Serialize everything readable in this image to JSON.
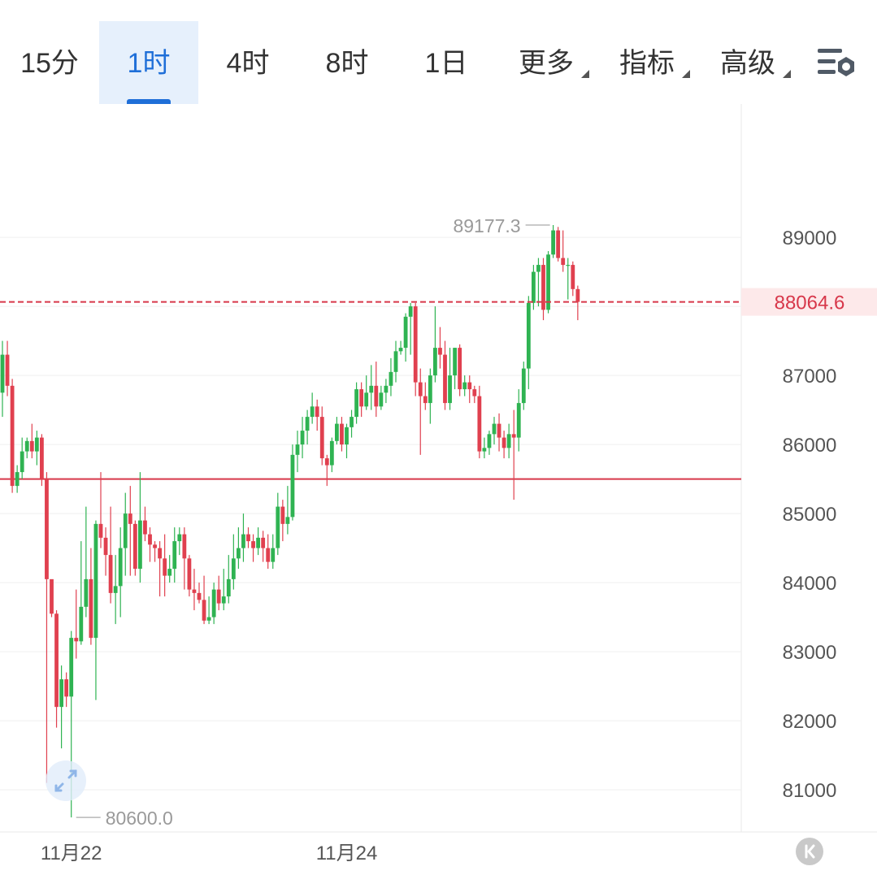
{
  "tabs": [
    {
      "label": "15分",
      "active": false,
      "dropdown": false
    },
    {
      "label": "1时",
      "active": true,
      "dropdown": false
    },
    {
      "label": "4时",
      "active": false,
      "dropdown": false
    },
    {
      "label": "8时",
      "active": false,
      "dropdown": false
    },
    {
      "label": "1日",
      "active": false,
      "dropdown": false
    },
    {
      "label": "更多",
      "active": false,
      "dropdown": true
    },
    {
      "label": "指标",
      "active": false,
      "dropdown": true
    },
    {
      "label": "高级",
      "active": false,
      "dropdown": true
    }
  ],
  "settings_icon": "chart-settings-icon",
  "fullscreen_icon": "expand-arrows-icon",
  "scroll_end_icon": "scroll-to-latest-icon",
  "colors": {
    "up": "#2fb352",
    "down": "#e0404f",
    "accent": "#1f6fd8",
    "grid": "#efefef",
    "axis_text": "#555555",
    "price_line": "#d7374a"
  },
  "chart_data": {
    "type": "candlestick",
    "interval": "1时",
    "y_ticks": [
      81000,
      82000,
      83000,
      84000,
      85000,
      86000,
      87000,
      88000,
      89000
    ],
    "y_tick_labels": [
      "81000",
      "82000",
      "83000",
      "84000",
      "85000",
      "86000",
      "87000",
      "",
      "89000"
    ],
    "x_labels": [
      {
        "label": "11月22",
        "index": 14
      },
      {
        "label": "11月24",
        "index": 70
      }
    ],
    "ylim": [
      80390,
      90930
    ],
    "last_price": 88064.6,
    "last_price_label": "88064.6",
    "high_label": "89177.3",
    "low_label": "80600.0",
    "support_level": 85500,
    "candles": [
      [
        86750,
        87300,
        86400,
        87500
      ],
      [
        87300,
        86850,
        86700,
        87500
      ],
      [
        86850,
        85400,
        85300,
        86950
      ],
      [
        85400,
        85600,
        85300,
        85700
      ],
      [
        85600,
        85900,
        85500,
        86100
      ],
      [
        85900,
        86050,
        85800,
        86100
      ],
      [
        86050,
        85900,
        85800,
        86300
      ],
      [
        85900,
        86100,
        85700,
        86200
      ],
      [
        86100,
        85500,
        85400,
        86150
      ],
      [
        85500,
        84050,
        81100,
        85600
      ],
      [
        84050,
        83550,
        83500,
        84000
      ],
      [
        83550,
        82200,
        81900,
        83600
      ],
      [
        82200,
        82600,
        81600,
        82800
      ],
      [
        82600,
        82350,
        82200,
        82700
      ],
      [
        82350,
        83200,
        80600,
        83300
      ],
      [
        83200,
        83150,
        82900,
        83900
      ],
      [
        83150,
        83650,
        83100,
        84600
      ],
      [
        83650,
        84050,
        83500,
        85100
      ],
      [
        84050,
        83200,
        83100,
        84500
      ],
      [
        83200,
        84850,
        82300,
        84900
      ],
      [
        84850,
        84650,
        84500,
        85600
      ],
      [
        84650,
        84400,
        84100,
        84800
      ],
      [
        84400,
        83850,
        83700,
        85100
      ],
      [
        83850,
        83950,
        83400,
        84400
      ],
      [
        83950,
        84500,
        83500,
        84800
      ],
      [
        84500,
        85000,
        84100,
        85300
      ],
      [
        85000,
        84850,
        84100,
        85400
      ],
      [
        84850,
        84200,
        84100,
        84900
      ],
      [
        84200,
        84900,
        84000,
        85600
      ],
      [
        84900,
        84700,
        84600,
        85100
      ],
      [
        84700,
        84550,
        84300,
        84800
      ],
      [
        84550,
        84500,
        84300,
        84600
      ],
      [
        84500,
        84350,
        83800,
        84600
      ],
      [
        84350,
        84100,
        83800,
        84700
      ],
      [
        84100,
        84200,
        84000,
        84400
      ],
      [
        84200,
        84600,
        84000,
        84800
      ],
      [
        84600,
        84700,
        84400,
        84800
      ],
      [
        84700,
        84350,
        83900,
        84800
      ],
      [
        84350,
        83900,
        83800,
        84400
      ],
      [
        83900,
        83850,
        83600,
        84200
      ],
      [
        83850,
        83750,
        83700,
        84000
      ],
      [
        83750,
        83450,
        83400,
        84100
      ],
      [
        83450,
        83500,
        83400,
        83800
      ],
      [
        83500,
        83900,
        83400,
        84000
      ],
      [
        83900,
        83700,
        83600,
        84100
      ],
      [
        83700,
        83800,
        83600,
        84200
      ],
      [
        83800,
        84050,
        83700,
        84400
      ],
      [
        84050,
        84350,
        83900,
        84700
      ],
      [
        84350,
        84500,
        84200,
        84800
      ],
      [
        84500,
        84700,
        84300,
        85000
      ],
      [
        84700,
        84600,
        84500,
        84800
      ],
      [
        84600,
        84500,
        84300,
        84700
      ],
      [
        84500,
        84650,
        84400,
        84800
      ],
      [
        84650,
        84500,
        84300,
        84750
      ],
      [
        84500,
        84300,
        84200,
        84700
      ],
      [
        84300,
        84500,
        84200,
        84700
      ],
      [
        84500,
        85100,
        84400,
        85300
      ],
      [
        85100,
        84850,
        84600,
        85200
      ],
      [
        84850,
        84950,
        84700,
        85400
      ],
      [
        84950,
        85850,
        84900,
        86000
      ],
      [
        85850,
        86000,
        85600,
        86200
      ],
      [
        86000,
        86200,
        85800,
        86400
      ],
      [
        86200,
        86400,
        86000,
        86500
      ],
      [
        86400,
        86550,
        86300,
        86750
      ],
      [
        86550,
        86400,
        86200,
        86650
      ],
      [
        86400,
        85800,
        85700,
        86550
      ],
      [
        85800,
        85700,
        85400,
        85850
      ],
      [
        85700,
        86050,
        85600,
        86100
      ],
      [
        86050,
        86300,
        86000,
        86400
      ],
      [
        86300,
        86000,
        85900,
        86400
      ],
      [
        86000,
        86250,
        85800,
        86300
      ],
      [
        86250,
        86400,
        86100,
        86500
      ],
      [
        86400,
        86800,
        86300,
        86900
      ],
      [
        86800,
        86550,
        86400,
        86900
      ],
      [
        86550,
        86750,
        86500,
        87000
      ],
      [
        86750,
        86850,
        86500,
        87150
      ],
      [
        86850,
        86550,
        86400,
        87200
      ],
      [
        86550,
        86750,
        86500,
        86850
      ],
      [
        86750,
        86850,
        86600,
        86950
      ],
      [
        86850,
        87050,
        86700,
        87250
      ],
      [
        87050,
        87350,
        86900,
        87500
      ],
      [
        87350,
        87400,
        87300,
        87500
      ],
      [
        87400,
        87850,
        87200,
        87900
      ],
      [
        87850,
        88000,
        87300,
        88050
      ],
      [
        88000,
        86900,
        86700,
        88050
      ],
      [
        86900,
        86700,
        85850,
        87100
      ],
      [
        86700,
        86600,
        86500,
        86900
      ],
      [
        86600,
        87000,
        86300,
        87100
      ],
      [
        87000,
        87400,
        86900,
        88000
      ],
      [
        87400,
        87300,
        87100,
        87700
      ],
      [
        87300,
        86600,
        86500,
        87500
      ],
      [
        86600,
        87000,
        86500,
        87400
      ],
      [
        87000,
        87400,
        86800,
        87400
      ],
      [
        87400,
        86800,
        86700,
        87450
      ],
      [
        86800,
        86900,
        86700,
        87000
      ],
      [
        86900,
        86800,
        86600,
        87000
      ],
      [
        86800,
        86700,
        86600,
        86850
      ],
      [
        86700,
        85900,
        85800,
        86850
      ],
      [
        85900,
        85950,
        85800,
        86100
      ],
      [
        85950,
        86150,
        85850,
        86200
      ],
      [
        86150,
        86300,
        86000,
        86400
      ],
      [
        86300,
        86100,
        85900,
        86450
      ],
      [
        86100,
        85950,
        85800,
        86200
      ],
      [
        85950,
        86150,
        85800,
        86300
      ],
      [
        86150,
        86100,
        85200,
        86500
      ],
      [
        86100,
        86600,
        85900,
        86800
      ],
      [
        86600,
        87100,
        86500,
        87200
      ],
      [
        87100,
        88050,
        86800,
        88150
      ],
      [
        88050,
        88500,
        87950,
        88600
      ],
      [
        88500,
        88600,
        88000,
        88700
      ],
      [
        88600,
        87950,
        87800,
        88700
      ],
      [
        87950,
        88750,
        87900,
        88800
      ],
      [
        88750,
        89100,
        88700,
        89177.3
      ],
      [
        89100,
        88700,
        88650,
        89150
      ],
      [
        88700,
        88600,
        88500,
        89100
      ],
      [
        88600,
        88600,
        88100,
        88700
      ],
      [
        88600,
        88250,
        88150,
        88650
      ],
      [
        88250,
        88064.6,
        87800,
        88300
      ]
    ]
  }
}
